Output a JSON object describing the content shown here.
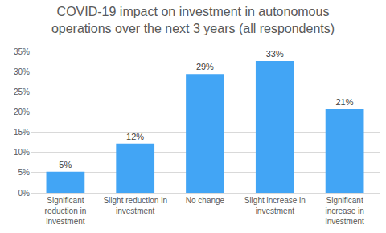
{
  "chart_data": {
    "type": "bar",
    "title": "COVID-19 impact on investment in autonomous operations over the next 3 years (all respondents)",
    "categories": [
      "Significant reduction in investment",
      "Slight reduction in investment",
      "No change",
      "Slight increase in investment",
      "Significant increase in investment"
    ],
    "values": [
      5.2,
      12.2,
      29.4,
      32.6,
      20.7
    ],
    "value_labels": [
      "5%",
      "12%",
      "29%",
      "33%",
      "21%"
    ],
    "data_labels": true,
    "color": "#42a5f5",
    "ylim": [
      0,
      35
    ],
    "yticks": [
      {
        "value": 0,
        "label": "0%"
      },
      {
        "value": 5,
        "label": "5%"
      },
      {
        "value": 10,
        "label": "10%"
      },
      {
        "value": 15,
        "label": "15%"
      },
      {
        "value": 20,
        "label": "20%"
      },
      {
        "value": 25,
        "label": "25%"
      },
      {
        "value": 30,
        "label": "30%"
      },
      {
        "value": 35,
        "label": "35%"
      }
    ],
    "grid": true
  }
}
